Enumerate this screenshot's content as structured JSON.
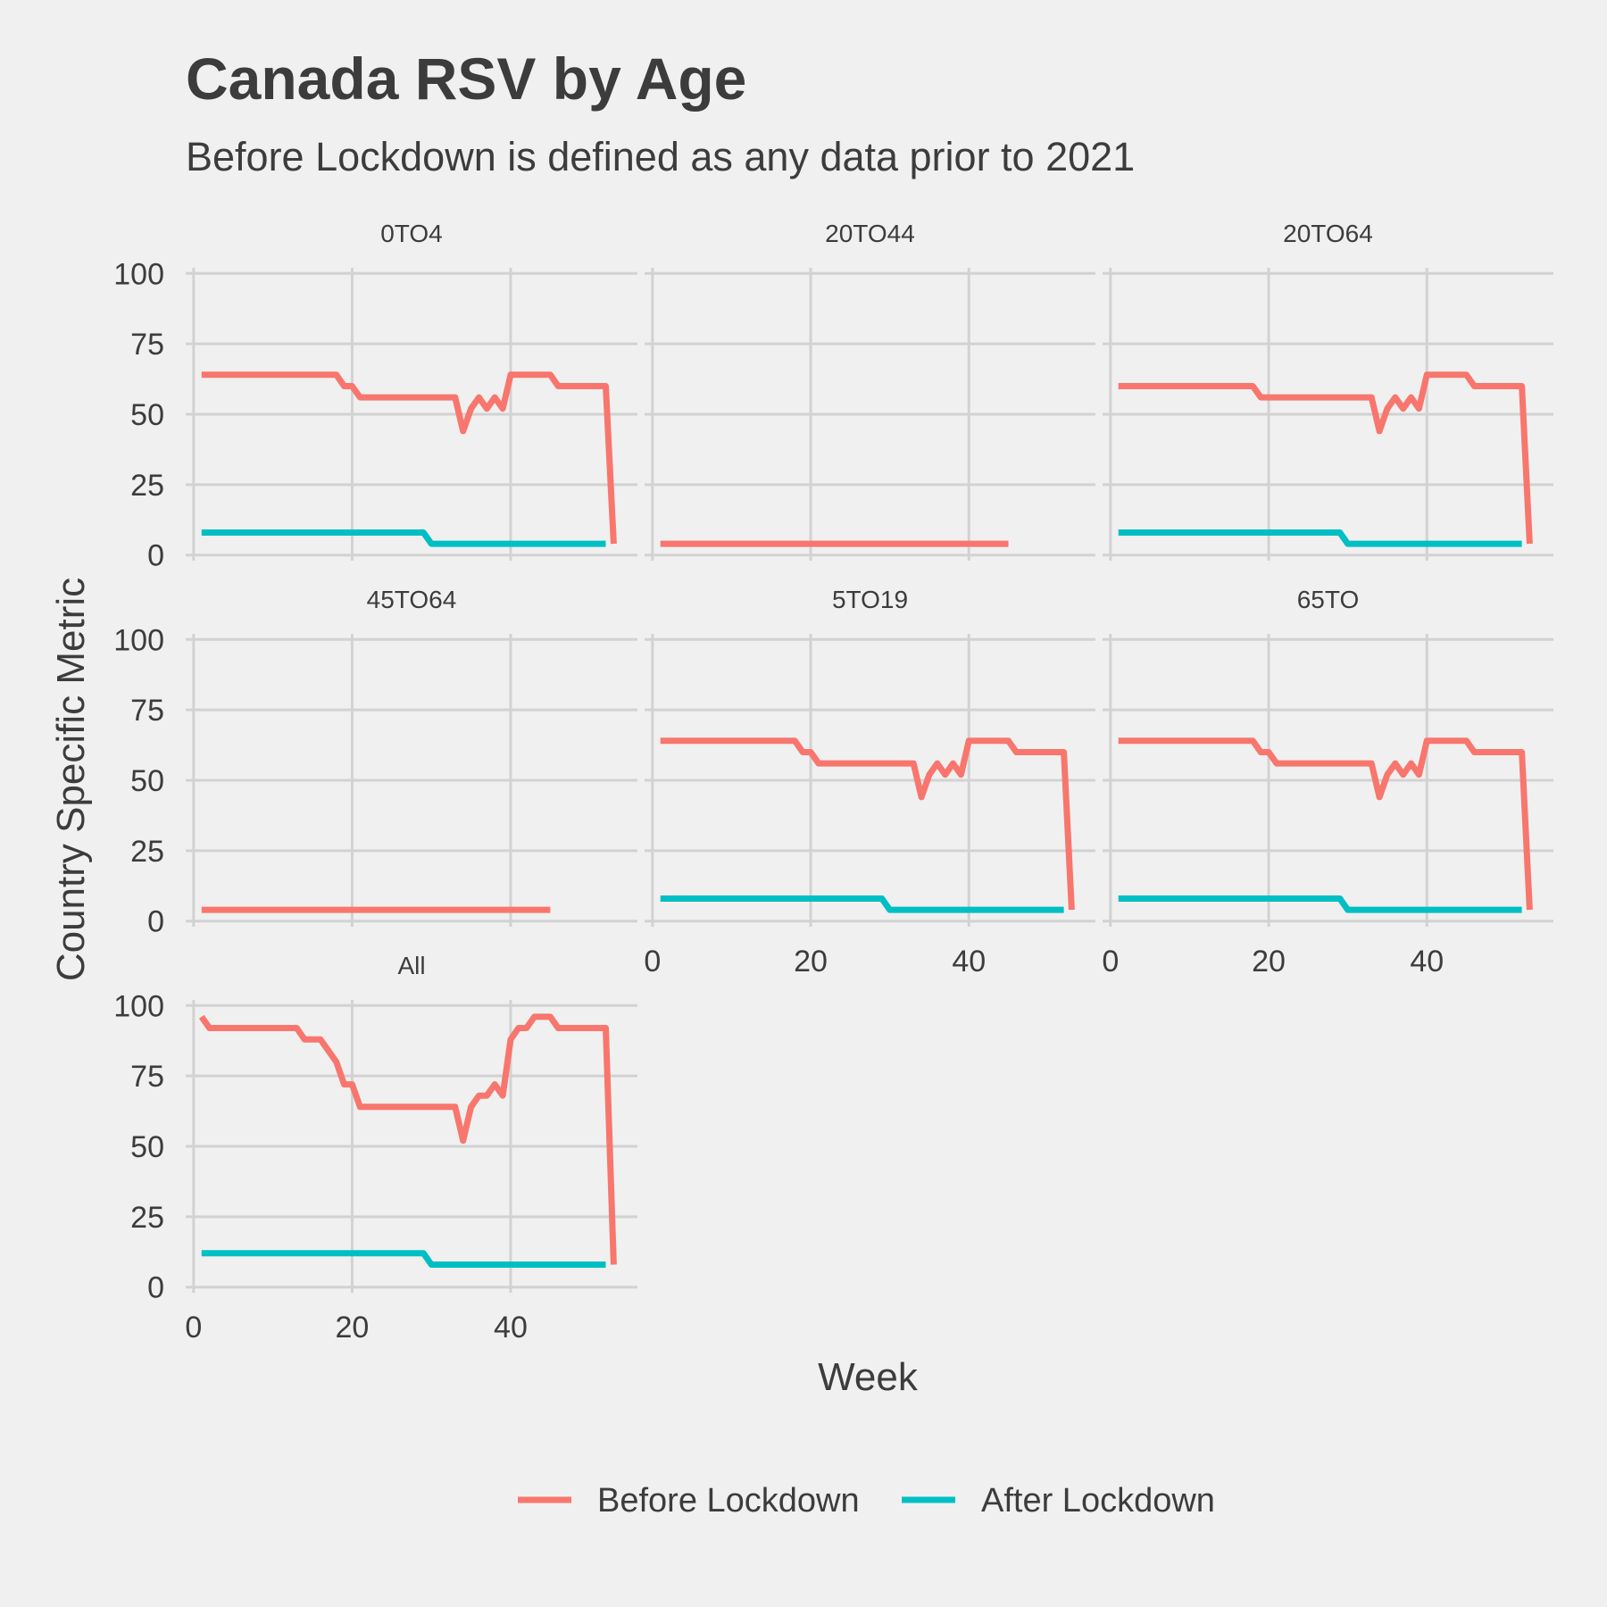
{
  "chart_data": {
    "type": "line",
    "title": "Canada RSV by Age",
    "subtitle": "Before Lockdown is defined as any data prior to 2021",
    "xlabel": "Week",
    "ylabel": "Country Specific Metric",
    "xlim": [
      -1,
      56
    ],
    "ylim": [
      -2,
      102
    ],
    "x_ticks": [
      0,
      20,
      40
    ],
    "y_ticks": [
      0,
      25,
      50,
      75,
      100
    ],
    "grid": true,
    "legend_position": "bottom",
    "series_colors": {
      "Before Lockdown": "#f8766d",
      "After Lockdown": "#00bfc4"
    },
    "legend": [
      {
        "name": "Before Lockdown",
        "color": "#f8766d"
      },
      {
        "name": "After Lockdown",
        "color": "#00bfc4"
      }
    ],
    "panels": [
      {
        "label": "0TO4",
        "series": [
          {
            "name": "Before Lockdown",
            "points": [
              [
                1,
                64
              ],
              [
                18,
                64
              ],
              [
                19,
                60
              ],
              [
                20,
                60
              ],
              [
                21,
                56
              ],
              [
                33,
                56
              ],
              [
                34,
                44
              ],
              [
                35,
                52
              ],
              [
                36,
                56
              ],
              [
                37,
                52
              ],
              [
                38,
                56
              ],
              [
                39,
                52
              ],
              [
                40,
                64
              ],
              [
                45,
                64
              ],
              [
                46,
                60
              ],
              [
                52,
                60
              ],
              [
                53,
                4
              ]
            ]
          },
          {
            "name": "After Lockdown",
            "points": [
              [
                1,
                8
              ],
              [
                29,
                8
              ],
              [
                30,
                4
              ],
              [
                52,
                4
              ]
            ]
          }
        ]
      },
      {
        "label": "20TO44",
        "series": [
          {
            "name": "Before Lockdown",
            "points": [
              [
                1,
                4
              ],
              [
                45,
                4
              ]
            ]
          }
        ]
      },
      {
        "label": "20TO64",
        "series": [
          {
            "name": "Before Lockdown",
            "points": [
              [
                1,
                60
              ],
              [
                18,
                60
              ],
              [
                19,
                56
              ],
              [
                33,
                56
              ],
              [
                34,
                44
              ],
              [
                35,
                52
              ],
              [
                36,
                56
              ],
              [
                37,
                52
              ],
              [
                38,
                56
              ],
              [
                39,
                52
              ],
              [
                40,
                64
              ],
              [
                45,
                64
              ],
              [
                46,
                60
              ],
              [
                52,
                60
              ],
              [
                53,
                4
              ]
            ]
          },
          {
            "name": "After Lockdown",
            "points": [
              [
                1,
                8
              ],
              [
                29,
                8
              ],
              [
                30,
                4
              ],
              [
                52,
                4
              ]
            ]
          }
        ]
      },
      {
        "label": "45TO64",
        "series": [
          {
            "name": "Before Lockdown",
            "points": [
              [
                1,
                4
              ],
              [
                45,
                4
              ]
            ]
          }
        ]
      },
      {
        "label": "5TO19",
        "series": [
          {
            "name": "Before Lockdown",
            "points": [
              [
                1,
                64
              ],
              [
                18,
                64
              ],
              [
                19,
                60
              ],
              [
                20,
                60
              ],
              [
                21,
                56
              ],
              [
                33,
                56
              ],
              [
                34,
                44
              ],
              [
                35,
                52
              ],
              [
                36,
                56
              ],
              [
                37,
                52
              ],
              [
                38,
                56
              ],
              [
                39,
                52
              ],
              [
                40,
                64
              ],
              [
                45,
                64
              ],
              [
                46,
                60
              ],
              [
                52,
                60
              ],
              [
                53,
                4
              ]
            ]
          },
          {
            "name": "After Lockdown",
            "points": [
              [
                1,
                8
              ],
              [
                29,
                8
              ],
              [
                30,
                4
              ],
              [
                52,
                4
              ]
            ]
          }
        ]
      },
      {
        "label": "65TO",
        "series": [
          {
            "name": "Before Lockdown",
            "points": [
              [
                1,
                64
              ],
              [
                18,
                64
              ],
              [
                19,
                60
              ],
              [
                20,
                60
              ],
              [
                21,
                56
              ],
              [
                33,
                56
              ],
              [
                34,
                44
              ],
              [
                35,
                52
              ],
              [
                36,
                56
              ],
              [
                37,
                52
              ],
              [
                38,
                56
              ],
              [
                39,
                52
              ],
              [
                40,
                64
              ],
              [
                45,
                64
              ],
              [
                46,
                60
              ],
              [
                52,
                60
              ],
              [
                53,
                4
              ]
            ]
          },
          {
            "name": "After Lockdown",
            "points": [
              [
                1,
                8
              ],
              [
                29,
                8
              ],
              [
                30,
                4
              ],
              [
                52,
                4
              ]
            ]
          }
        ]
      },
      {
        "label": "All",
        "series": [
          {
            "name": "Before Lockdown",
            "points": [
              [
                1,
                96
              ],
              [
                2,
                92
              ],
              [
                13,
                92
              ],
              [
                14,
                88
              ],
              [
                16,
                88
              ],
              [
                18,
                80
              ],
              [
                19,
                72
              ],
              [
                20,
                72
              ],
              [
                21,
                64
              ],
              [
                33,
                64
              ],
              [
                34,
                52
              ],
              [
                35,
                64
              ],
              [
                36,
                68
              ],
              [
                37,
                68
              ],
              [
                38,
                72
              ],
              [
                39,
                68
              ],
              [
                40,
                88
              ],
              [
                41,
                92
              ],
              [
                42,
                92
              ],
              [
                43,
                96
              ],
              [
                45,
                96
              ],
              [
                46,
                92
              ],
              [
                52,
                92
              ],
              [
                53,
                8
              ]
            ]
          },
          {
            "name": "After Lockdown",
            "points": [
              [
                1,
                12
              ],
              [
                29,
                12
              ],
              [
                30,
                8
              ],
              [
                52,
                8
              ]
            ]
          }
        ]
      }
    ]
  }
}
